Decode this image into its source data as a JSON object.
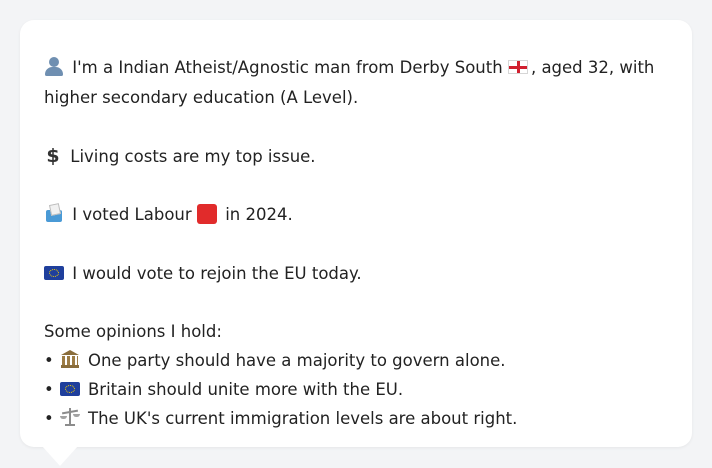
{
  "profile": {
    "line1_pre": "I'm a Indian Atheist/Agnostic man from Derby South",
    "line1_post": ", aged 32, with",
    "line2": "higher secondary education (A Level).",
    "top_issue": "Living costs are my top issue.",
    "vote_pre": "I voted Labour",
    "vote_post": "in 2024.",
    "eu_line": "I would vote to rejoin the EU today.",
    "opinions_heading": "Some opinions I hold:",
    "bullet_char": "•",
    "opinions": [
      {
        "icon": "classical-building-icon",
        "text": "One party should have a majority to govern alone."
      },
      {
        "icon": "eu-flag-icon",
        "text": "Britain should unite more with the EU."
      },
      {
        "icon": "balance-scale-icon",
        "text": "The UK's current immigration levels are about right."
      }
    ]
  },
  "colors": {
    "page_background": "#f3f4f6",
    "bubble_background": "#ffffff",
    "text": "#222222",
    "labour_red": "#e12b2b",
    "eu_blue": "#1f3f9c"
  }
}
